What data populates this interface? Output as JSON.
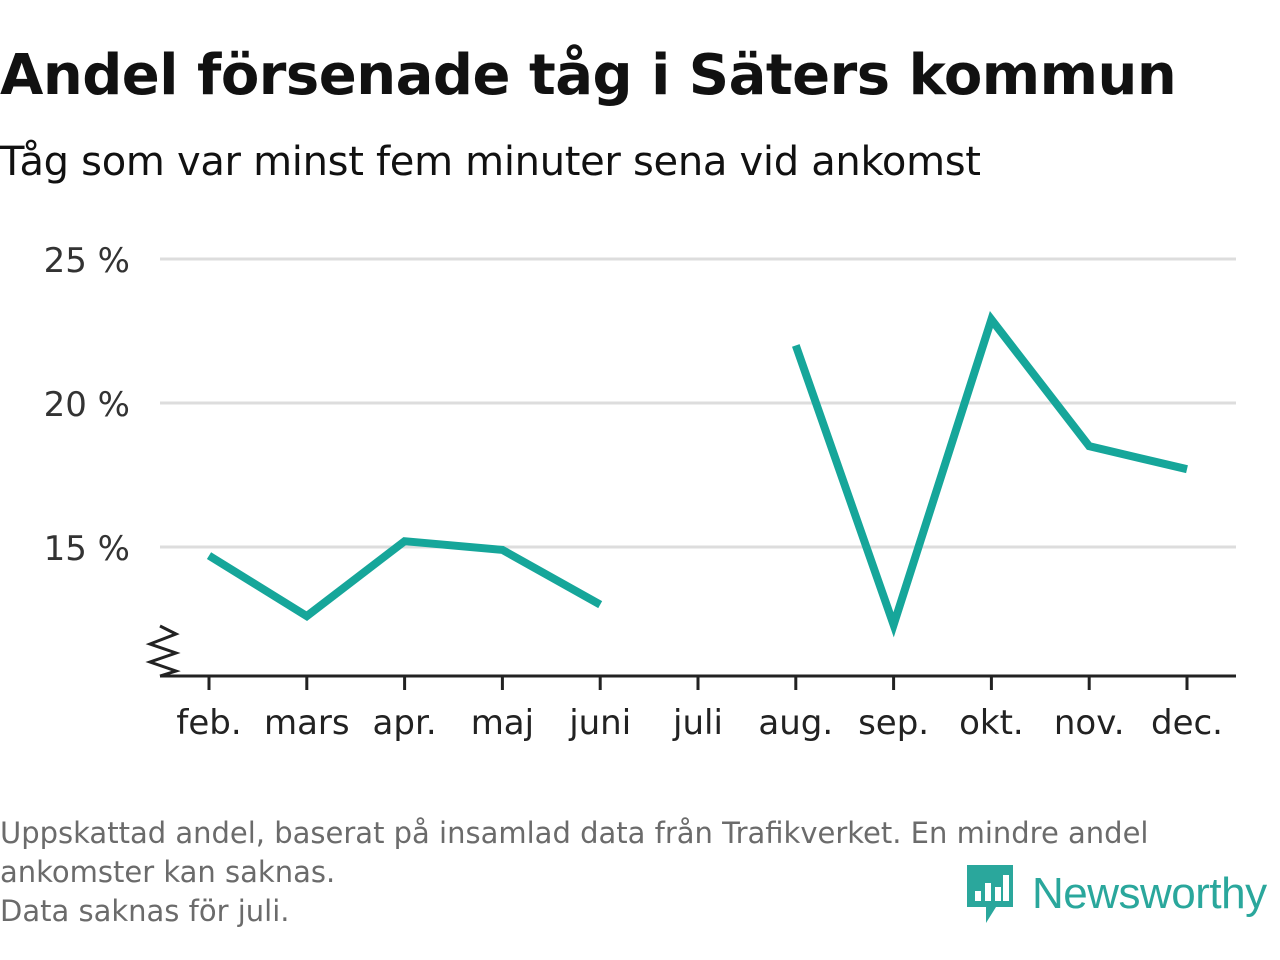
{
  "header": {
    "title": "Andel försenade tåg i Säters kommun",
    "subtitle": "Tåg som var minst fem minuter sena vid ankomst"
  },
  "chart_data": {
    "type": "line",
    "title": "Andel försenade tåg i Säters kommun",
    "subtitle": "Tåg som var minst fem minuter sena vid ankomst",
    "xlabel": "",
    "ylabel": "",
    "categories": [
      "feb.",
      "mars",
      "apr.",
      "maj",
      "juni",
      "juli",
      "aug.",
      "sep.",
      "okt.",
      "nov.",
      "dec."
    ],
    "series": [
      {
        "values": [
          14.7,
          12.6,
          15.2,
          14.9,
          13.0,
          null,
          22.0,
          12.3,
          22.9,
          18.5,
          17.7
        ]
      }
    ],
    "y_ticks": [
      15,
      20,
      25
    ],
    "y_tick_labels": [
      "15 %",
      "20 %",
      "25 %"
    ],
    "ylim": [
      10.5,
      25
    ],
    "y_axis_break": true,
    "grid": true,
    "line_color": "#16a69a",
    "grid_color": "#dddddd"
  },
  "footnote": {
    "line1": "Uppskattad andel, baserat på insamlad data från Trafikverket. En mindre andel ankomster kan saknas.",
    "line2": "Data saknas för juli."
  },
  "brand": {
    "name": "Newsworthy",
    "icon": "newsworthy-logo-icon",
    "color": "#2aa79c"
  }
}
